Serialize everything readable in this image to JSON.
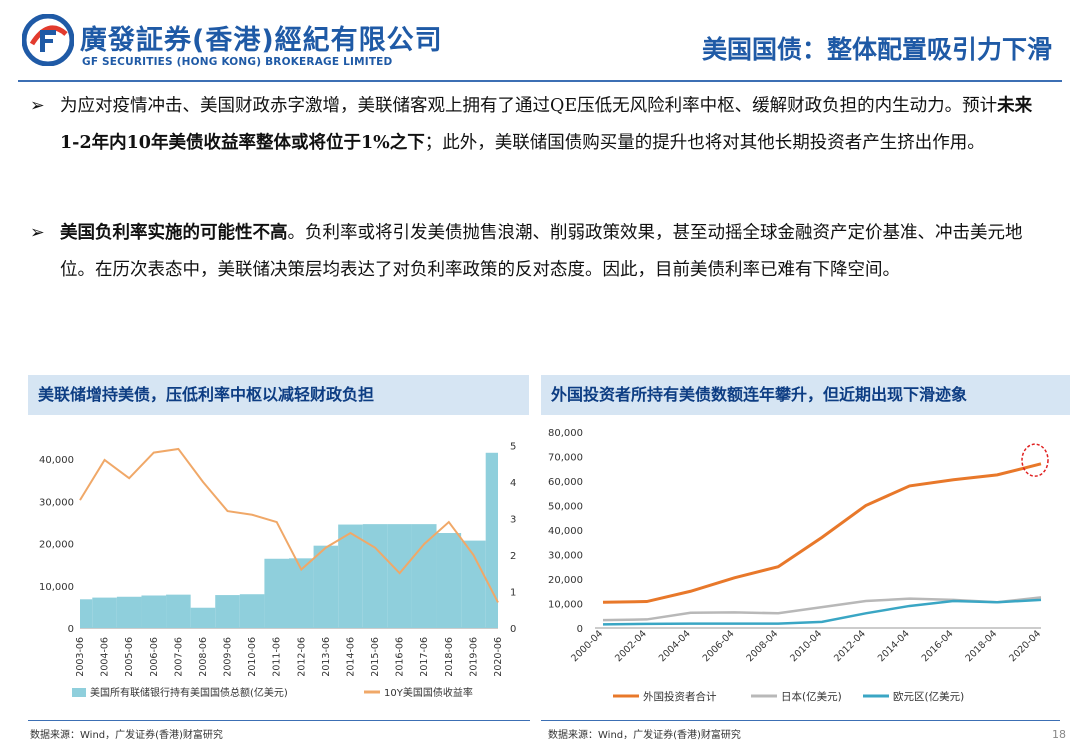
{
  "header": {
    "logo_cn": "廣發証券(香港)經紀有限公司",
    "logo_en": "GF SECURITIES (HONG KONG) BROKERAGE LIMITED",
    "title": "美国国债：整体配置吸引力下滑"
  },
  "bullets": [
    {
      "arrow": "➢",
      "p1": "为应对疫情冲击、美国财政赤字激增，美联储客观上拥有了通过QE压低无风险利率中枢、缓解财政负担的内生动力。预计",
      "bold": "未来1-2年内10年美债收益率整体或将位于1%之下",
      "p2": "；此外，美联储国债购买量的提升也将对其他长期投资者产生挤出作用。"
    },
    {
      "arrow": "➢",
      "bold": "美国负利率实施的可能性不高",
      "p2": "。负利率或将引发美债抛售浪潮、削弱政策效果，甚至动摇全球金融资产定价基准、冲击美元地位。在历次表态中，美联储决策层均表达了对负利率政策的反对态度。因此，目前美债利率已难有下降空间。"
    }
  ],
  "panels": {
    "left_title": "美联储增持美债，压低利率中枢以减轻财政负担",
    "right_title": "外国投资者所持有美债数额连年攀升，但近期出现下滑迹象",
    "left_source": "数据来源：Wind，广发证券(香港)财富研究",
    "right_source": "数据来源：Wind，广发证券(香港)财富研究"
  },
  "page_number": "18",
  "colors": {
    "brand_blue": "#1f5aa6",
    "bar_blue": "#8fcfdc",
    "orange": "#f0a868",
    "dark_orange": "#e8782a",
    "gray": "#b8b8b8",
    "teal": "#3aa6c4",
    "red_circle": "#e02020"
  },
  "chart_data": [
    {
      "type": "bar",
      "title": "美联储增持美债，压低利率中枢以减轻财政负担",
      "xlabel": "",
      "ylabel": "",
      "categories": [
        "2003-06",
        "2004-06",
        "2005-06",
        "2006-06",
        "2007-06",
        "2008-06",
        "2009-06",
        "2010-06",
        "2011-06",
        "2012-06",
        "2013-06",
        "2014-06",
        "2015-06",
        "2016-06",
        "2017-06",
        "2018-06",
        "2019-06",
        "2020-06"
      ],
      "ylim": [
        0,
        45000
      ],
      "y_ticks": [
        "0",
        "10,000",
        "20,000",
        "30,000",
        "40,000"
      ],
      "y2lim": [
        0,
        5.2
      ],
      "y2_ticks": [
        "0",
        "1",
        "2",
        "3",
        "4",
        "5"
      ],
      "grid": false,
      "legend": "bottom",
      "series": [
        {
          "name": "美国所有联储银行持有美国国债总额(亿美元)",
          "type": "bar",
          "axis": "left",
          "values": [
            6800,
            7200,
            7400,
            7700,
            7900,
            4800,
            7800,
            8000,
            16400,
            16500,
            19500,
            24500,
            24600,
            24600,
            24600,
            22500,
            20700,
            41500
          ]
        },
        {
          "name": "10Y美国国债收益率",
          "type": "line",
          "axis": "right",
          "values": [
            3.5,
            4.6,
            4.1,
            4.8,
            4.9,
            4.0,
            3.2,
            3.1,
            2.9,
            1.6,
            2.2,
            2.6,
            2.2,
            1.5,
            2.3,
            2.9,
            2.0,
            0.7
          ]
        }
      ]
    },
    {
      "type": "line",
      "title": "外国投资者所持有美债数额连年攀升，但近期出现下滑迹象",
      "xlabel": "",
      "ylabel": "",
      "x": [
        "2000-04",
        "2002-04",
        "2004-04",
        "2006-04",
        "2008-04",
        "2010-04",
        "2012-04",
        "2014-04",
        "2016-04",
        "2018-04",
        "2020-04"
      ],
      "ylim": [
        0,
        80000
      ],
      "y_ticks": [
        "0",
        "10,000",
        "20,000",
        "30,000",
        "40,000",
        "50,000",
        "60,000",
        "70,000",
        "80,000"
      ],
      "grid": false,
      "legend": "bottom",
      "annotation": "red dashed circle around 2020 peak",
      "series": [
        {
          "name": "外国投资者合计",
          "values": [
            10500,
            10800,
            15000,
            20500,
            25000,
            37000,
            50000,
            58000,
            60500,
            62500,
            67000
          ]
        },
        {
          "name": "日本(亿美元)",
          "values": [
            3200,
            3500,
            6200,
            6400,
            6000,
            8500,
            11000,
            12000,
            11500,
            10500,
            12500
          ]
        },
        {
          "name": "欧元区(亿美元)",
          "values": [
            1500,
            1700,
            1800,
            1800,
            1800,
            2500,
            6000,
            9000,
            11000,
            10500,
            11500
          ]
        }
      ]
    }
  ]
}
